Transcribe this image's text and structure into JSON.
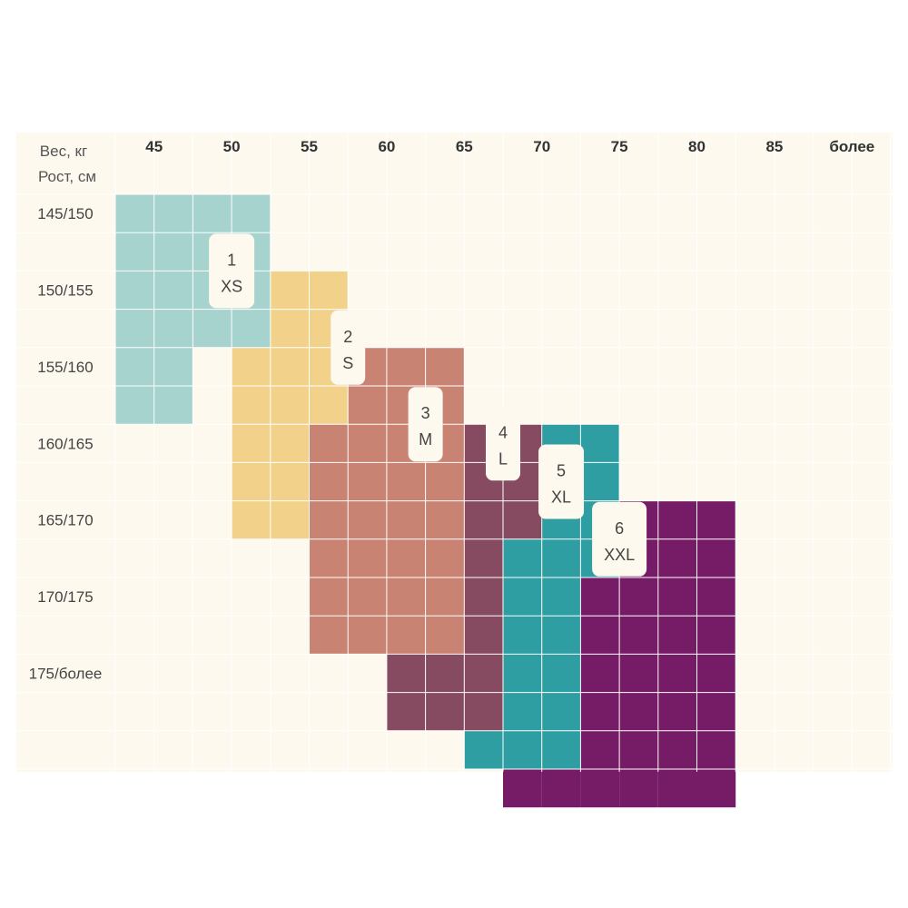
{
  "chart_data": {
    "type": "heatmap",
    "corner_label_weight": "Вес, кг",
    "corner_label_height": "Рост, см",
    "columns": [
      "45",
      "50",
      "55",
      "60",
      "65",
      "70",
      "75",
      "80",
      "85",
      "более"
    ],
    "rows": [
      "145/150",
      "150/155",
      "155/160",
      "160/165",
      "165/170",
      "170/175",
      "175/более"
    ],
    "background_color": "#fdf9ee",
    "sizes": [
      {
        "number": "1",
        "size": "XS",
        "color": "#a6d3cd",
        "cells": [
          [
            0,
            0,
            4
          ],
          [
            1,
            0,
            4
          ],
          [
            2,
            0,
            4
          ],
          [
            3,
            0,
            4
          ],
          [
            4,
            0,
            2
          ],
          [
            5,
            0,
            2
          ]
        ]
      },
      {
        "number": "2",
        "size": "S",
        "color": "#f2d28a",
        "cells": [
          [
            2,
            4,
            6
          ],
          [
            3,
            4,
            6
          ],
          [
            4,
            3,
            6
          ],
          [
            5,
            3,
            6
          ],
          [
            6,
            3,
            5
          ],
          [
            7,
            3,
            5
          ],
          [
            8,
            3,
            5
          ]
        ]
      },
      {
        "number": "3",
        "size": "M",
        "color": "#c88373",
        "cells": [
          [
            4,
            6,
            9
          ],
          [
            5,
            6,
            9
          ],
          [
            6,
            5,
            9
          ],
          [
            7,
            5,
            9
          ],
          [
            8,
            5,
            9
          ],
          [
            9,
            5,
            9
          ],
          [
            10,
            5,
            9
          ],
          [
            11,
            5,
            9
          ]
        ]
      },
      {
        "number": "4",
        "size": "L",
        "color": "#874b61",
        "cells": [
          [
            6,
            9,
            11
          ],
          [
            7,
            9,
            11
          ],
          [
            8,
            9,
            11
          ],
          [
            9,
            9,
            10
          ],
          [
            10,
            9,
            10
          ],
          [
            11,
            9,
            10
          ],
          [
            12,
            7,
            10
          ],
          [
            13,
            7,
            10
          ]
        ]
      },
      {
        "number": "5",
        "size": "XL",
        "color": "#2e9ea2",
        "cells": [
          [
            6,
            11,
            13
          ],
          [
            7,
            11,
            13
          ],
          [
            8,
            11,
            13
          ],
          [
            9,
            10,
            13
          ],
          [
            10,
            10,
            13
          ],
          [
            11,
            10,
            13
          ],
          [
            12,
            10,
            12
          ],
          [
            13,
            10,
            12
          ],
          [
            14,
            9,
            12
          ]
        ]
      },
      {
        "number": "6",
        "size": "XXL",
        "color": "#761b66",
        "cells": [
          [
            8,
            13,
            16
          ],
          [
            9,
            13,
            16
          ],
          [
            10,
            12,
            16
          ],
          [
            11,
            12,
            16
          ],
          [
            12,
            12,
            16
          ],
          [
            13,
            12,
            16
          ],
          [
            14,
            12,
            16
          ],
          [
            15,
            10,
            16
          ]
        ]
      }
    ],
    "label_positions": {
      "1": [
        2,
        3
      ],
      "2": [
        4,
        6
      ],
      "3": [
        6,
        8
      ],
      "4": [
        6.5,
        10
      ],
      "5": [
        7.5,
        11.5
      ],
      "6": [
        9,
        13
      ]
    }
  }
}
